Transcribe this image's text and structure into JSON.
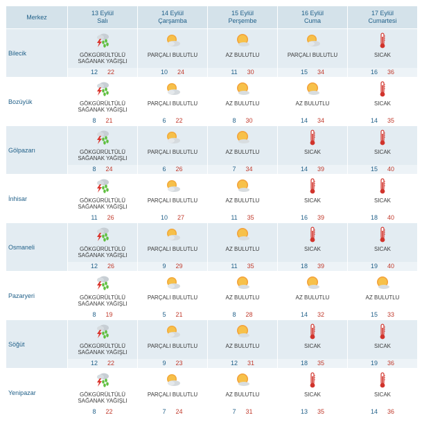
{
  "header": {
    "location_label": "Merkez",
    "days": [
      {
        "date": "13 Eylül",
        "day": "Salı"
      },
      {
        "date": "14 Eylül",
        "day": "Çarşamba"
      },
      {
        "date": "15 Eylül",
        "day": "Perşembe"
      },
      {
        "date": "16 Eylül",
        "day": "Cuma"
      },
      {
        "date": "17 Eylül",
        "day": "Cumartesi"
      }
    ]
  },
  "rows": [
    {
      "name": "Bilecik",
      "cells": [
        {
          "icon": "thunderstorm-rain-icon",
          "cond": [
            "GÖKGÜRÜLTÜLÜ",
            "SAĞANAK YAĞIŞLI"
          ],
          "min": "12",
          "max": "22"
        },
        {
          "icon": "partly-cloudy-icon",
          "cond": [
            "PARÇALI BULUTLU"
          ],
          "min": "10",
          "max": "24"
        },
        {
          "icon": "mostly-sunny-icon",
          "cond": [
            "AZ BULUTLU"
          ],
          "min": "11",
          "max": "30"
        },
        {
          "icon": "partly-cloudy-icon",
          "cond": [
            "PARÇALI BULUTLU"
          ],
          "min": "15",
          "max": "34"
        },
        {
          "icon": "thermometer-icon",
          "cond": [
            "SICAK"
          ],
          "min": "16",
          "max": "36"
        }
      ]
    },
    {
      "name": "Bozüyük",
      "cells": [
        {
          "icon": "thunderstorm-rain-icon",
          "cond": [
            "GÖKGÜRÜLTÜLÜ",
            "SAĞANAK YAĞIŞLI"
          ],
          "min": "8",
          "max": "21"
        },
        {
          "icon": "partly-cloudy-icon",
          "cond": [
            "PARÇALI BULUTLU"
          ],
          "min": "6",
          "max": "22"
        },
        {
          "icon": "mostly-sunny-icon",
          "cond": [
            "AZ BULUTLU"
          ],
          "min": "8",
          "max": "30"
        },
        {
          "icon": "mostly-sunny-icon",
          "cond": [
            "AZ BULUTLU"
          ],
          "min": "14",
          "max": "34"
        },
        {
          "icon": "thermometer-icon",
          "cond": [
            "SICAK"
          ],
          "min": "14",
          "max": "35"
        }
      ]
    },
    {
      "name": "Gölpazarı",
      "cells": [
        {
          "icon": "thunderstorm-rain-icon",
          "cond": [
            "GÖKGÜRÜLTÜLÜ",
            "SAĞANAK YAĞIŞLI"
          ],
          "min": "8",
          "max": "24"
        },
        {
          "icon": "partly-cloudy-icon",
          "cond": [
            "PARÇALI BULUTLU"
          ],
          "min": "6",
          "max": "26"
        },
        {
          "icon": "mostly-sunny-icon",
          "cond": [
            "AZ BULUTLU"
          ],
          "min": "7",
          "max": "34"
        },
        {
          "icon": "thermometer-icon",
          "cond": [
            "SICAK"
          ],
          "min": "14",
          "max": "39"
        },
        {
          "icon": "thermometer-icon",
          "cond": [
            "SICAK"
          ],
          "min": "15",
          "max": "40"
        }
      ]
    },
    {
      "name": "İnhisar",
      "cells": [
        {
          "icon": "thunderstorm-rain-icon",
          "cond": [
            "GÖKGÜRÜLTÜLÜ",
            "SAĞANAK YAĞIŞLI"
          ],
          "min": "11",
          "max": "26"
        },
        {
          "icon": "partly-cloudy-icon",
          "cond": [
            "PARÇALI BULUTLU"
          ],
          "min": "10",
          "max": "27"
        },
        {
          "icon": "mostly-sunny-icon",
          "cond": [
            "AZ BULUTLU"
          ],
          "min": "11",
          "max": "35"
        },
        {
          "icon": "thermometer-icon",
          "cond": [
            "SICAK"
          ],
          "min": "16",
          "max": "39"
        },
        {
          "icon": "thermometer-icon",
          "cond": [
            "SICAK"
          ],
          "min": "18",
          "max": "40"
        }
      ]
    },
    {
      "name": "Osmaneli",
      "cells": [
        {
          "icon": "thunderstorm-rain-icon",
          "cond": [
            "GÖKGÜRÜLTÜLÜ",
            "SAĞANAK YAĞIŞLI"
          ],
          "min": "12",
          "max": "26"
        },
        {
          "icon": "partly-cloudy-icon",
          "cond": [
            "PARÇALI BULUTLU"
          ],
          "min": "9",
          "max": "29"
        },
        {
          "icon": "mostly-sunny-icon",
          "cond": [
            "AZ BULUTLU"
          ],
          "min": "11",
          "max": "35"
        },
        {
          "icon": "thermometer-icon",
          "cond": [
            "SICAK"
          ],
          "min": "18",
          "max": "39"
        },
        {
          "icon": "thermometer-icon",
          "cond": [
            "SICAK"
          ],
          "min": "19",
          "max": "40"
        }
      ]
    },
    {
      "name": "Pazaryeri",
      "cells": [
        {
          "icon": "thunderstorm-rain-icon",
          "cond": [
            "GÖKGÜRÜLTÜLÜ",
            "SAĞANAK YAĞIŞLI"
          ],
          "min": "8",
          "max": "19"
        },
        {
          "icon": "partly-cloudy-icon",
          "cond": [
            "PARÇALI BULUTLU"
          ],
          "min": "5",
          "max": "21"
        },
        {
          "icon": "mostly-sunny-icon",
          "cond": [
            "AZ BULUTLU"
          ],
          "min": "8",
          "max": "28"
        },
        {
          "icon": "mostly-sunny-icon",
          "cond": [
            "AZ BULUTLU"
          ],
          "min": "14",
          "max": "32"
        },
        {
          "icon": "mostly-sunny-icon",
          "cond": [
            "AZ BULUTLU"
          ],
          "min": "15",
          "max": "33"
        }
      ]
    },
    {
      "name": "Söğüt",
      "cells": [
        {
          "icon": "thunderstorm-rain-icon",
          "cond": [
            "GÖKGÜRÜLTÜLÜ",
            "SAĞANAK YAĞIŞLI"
          ],
          "min": "12",
          "max": "22"
        },
        {
          "icon": "partly-cloudy-icon",
          "cond": [
            "PARÇALI BULUTLU"
          ],
          "min": "9",
          "max": "23"
        },
        {
          "icon": "mostly-sunny-icon",
          "cond": [
            "AZ BULUTLU"
          ],
          "min": "12",
          "max": "31"
        },
        {
          "icon": "thermometer-icon",
          "cond": [
            "SICAK"
          ],
          "min": "18",
          "max": "35"
        },
        {
          "icon": "thermometer-icon",
          "cond": [
            "SICAK"
          ],
          "min": "19",
          "max": "36"
        }
      ]
    },
    {
      "name": "Yenipazar",
      "cells": [
        {
          "icon": "thunderstorm-rain-icon",
          "cond": [
            "GÖKGÜRÜLTÜLÜ",
            "SAĞANAK YAĞIŞLI"
          ],
          "min": "8",
          "max": "22"
        },
        {
          "icon": "partly-cloudy-icon",
          "cond": [
            "PARÇALI BULUTLU"
          ],
          "min": "7",
          "max": "24"
        },
        {
          "icon": "mostly-sunny-icon",
          "cond": [
            "AZ BULUTLU"
          ],
          "min": "7",
          "max": "31"
        },
        {
          "icon": "thermometer-icon",
          "cond": [
            "SICAK"
          ],
          "min": "13",
          "max": "35"
        },
        {
          "icon": "thermometer-icon",
          "cond": [
            "SICAK"
          ],
          "min": "14",
          "max": "36"
        }
      ]
    }
  ],
  "colors": {
    "header_bg": "#d4e2ea",
    "row_alt_bg": "#e3ecf2",
    "text_blue": "#1f5f88",
    "temp_max_red": "#c0392b"
  }
}
